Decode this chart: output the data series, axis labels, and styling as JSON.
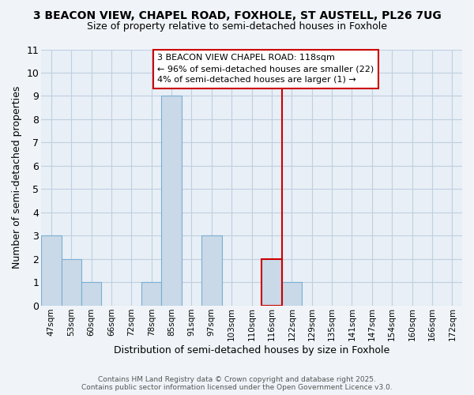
{
  "title": "3 BEACON VIEW, CHAPEL ROAD, FOXHOLE, ST AUSTELL, PL26 7UG",
  "subtitle": "Size of property relative to semi-detached houses in Foxhole",
  "xlabel": "Distribution of semi-detached houses by size in Foxhole",
  "ylabel": "Number of semi-detached properties",
  "bin_labels": [
    "47sqm",
    "53sqm",
    "60sqm",
    "66sqm",
    "72sqm",
    "78sqm",
    "85sqm",
    "91sqm",
    "97sqm",
    "103sqm",
    "110sqm",
    "116sqm",
    "122sqm",
    "129sqm",
    "135sqm",
    "141sqm",
    "147sqm",
    "154sqm",
    "160sqm",
    "166sqm",
    "172sqm"
  ],
  "counts": [
    3,
    2,
    1,
    0,
    0,
    1,
    9,
    0,
    3,
    0,
    0,
    2,
    1,
    0,
    0,
    0,
    0,
    0,
    0,
    0,
    0
  ],
  "bar_color": "#c9d9e8",
  "bar_edge_color": "#7aafd4",
  "highlight_bar_index": 11,
  "highlight_bar_color": "#c9d9e8",
  "highlight_bar_edge_color": "#cc0000",
  "vline_color": "#cc0000",
  "ylim": [
    0,
    11
  ],
  "yticks": [
    0,
    1,
    2,
    3,
    4,
    5,
    6,
    7,
    8,
    9,
    10,
    11
  ],
  "annotation_text": "3 BEACON VIEW CHAPEL ROAD: 118sqm\n← 96% of semi-detached houses are smaller (22)\n4% of semi-detached houses are larger (1) →",
  "footer_line1": "Contains HM Land Registry data © Crown copyright and database right 2025.",
  "footer_line2": "Contains public sector information licensed under the Open Government Licence v3.0.",
  "bg_color": "#f0f4f8",
  "plot_bg_color": "#e8eff6",
  "grid_color": "#c0cfe0",
  "title_fontsize": 10,
  "subtitle_fontsize": 9
}
